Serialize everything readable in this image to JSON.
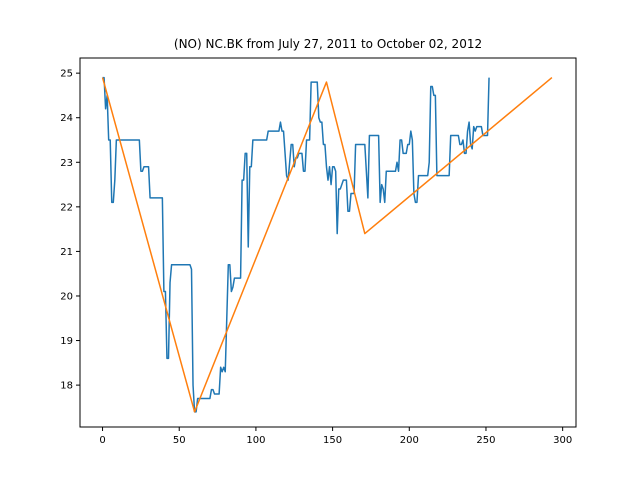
{
  "chart_data": {
    "type": "line",
    "title": "(NO) NC.BK from July 27, 2011 to October 02, 2012",
    "xlabel": "",
    "ylabel": "",
    "xlim": [
      -14.7,
      308.7
    ],
    "ylim": [
      17.06,
      25.34
    ],
    "xticks": [
      0,
      50,
      100,
      150,
      200,
      250,
      300
    ],
    "yticks": [
      18,
      19,
      20,
      21,
      22,
      23,
      24,
      25
    ],
    "grid": false,
    "legend": "none",
    "series": [
      {
        "color": "#1f77b4",
        "points": [
          [
            0,
            24.9
          ],
          [
            1,
            24.9
          ],
          [
            2,
            24.2
          ],
          [
            3,
            24.5
          ],
          [
            4,
            23.5
          ],
          [
            5,
            23.5
          ],
          [
            6,
            22.1
          ],
          [
            7,
            22.1
          ],
          [
            8,
            22.6
          ],
          [
            9,
            23.5
          ],
          [
            10,
            23.5
          ],
          [
            15,
            23.5
          ],
          [
            20,
            23.5
          ],
          [
            24,
            23.5
          ],
          [
            25,
            22.8
          ],
          [
            26,
            22.8
          ],
          [
            27,
            22.9
          ],
          [
            30,
            22.9
          ],
          [
            31,
            22.2
          ],
          [
            35,
            22.2
          ],
          [
            39,
            22.2
          ],
          [
            40,
            20.1
          ],
          [
            41,
            20.1
          ],
          [
            42,
            18.6
          ],
          [
            43,
            18.6
          ],
          [
            44,
            20.3
          ],
          [
            45,
            20.7
          ],
          [
            50,
            20.7
          ],
          [
            55,
            20.7
          ],
          [
            57,
            20.7
          ],
          [
            58,
            20.6
          ],
          [
            59,
            18.0
          ],
          [
            60,
            17.4
          ],
          [
            61,
            17.4
          ],
          [
            62,
            17.7
          ],
          [
            65,
            17.7
          ],
          [
            70,
            17.7
          ],
          [
            71,
            17.9
          ],
          [
            72,
            17.9
          ],
          [
            73,
            17.8
          ],
          [
            76,
            17.8
          ],
          [
            77,
            18.4
          ],
          [
            78,
            18.3
          ],
          [
            79,
            18.4
          ],
          [
            80,
            18.3
          ],
          [
            81,
            19.5
          ],
          [
            82,
            20.7
          ],
          [
            83,
            20.7
          ],
          [
            84,
            20.1
          ],
          [
            85,
            20.2
          ],
          [
            86,
            20.4
          ],
          [
            90,
            20.4
          ],
          [
            91,
            22.6
          ],
          [
            92,
            22.6
          ],
          [
            93,
            23.2
          ],
          [
            94,
            23.2
          ],
          [
            95,
            21.1
          ],
          [
            96,
            22.9
          ],
          [
            97,
            22.9
          ],
          [
            98,
            23.5
          ],
          [
            105,
            23.5
          ],
          [
            107,
            23.5
          ],
          [
            108,
            23.7
          ],
          [
            115,
            23.7
          ],
          [
            116,
            23.9
          ],
          [
            117,
            23.7
          ],
          [
            118,
            23.7
          ],
          [
            119,
            23.2
          ],
          [
            120,
            22.7
          ],
          [
            121,
            22.6
          ],
          [
            122,
            23.0
          ],
          [
            123,
            23.4
          ],
          [
            124,
            23.4
          ],
          [
            125,
            22.9
          ],
          [
            126,
            23.1
          ],
          [
            127,
            23.1
          ],
          [
            128,
            23.2
          ],
          [
            130,
            23.2
          ],
          [
            131,
            22.8
          ],
          [
            132,
            22.8
          ],
          [
            133,
            23.5
          ],
          [
            135,
            23.5
          ],
          [
            136,
            24.8
          ],
          [
            140,
            24.8
          ],
          [
            141,
            24.0
          ],
          [
            142,
            23.9
          ],
          [
            143,
            23.9
          ],
          [
            144,
            23.4
          ],
          [
            145,
            23.4
          ],
          [
            146,
            22.9
          ],
          [
            147,
            22.6
          ],
          [
            148,
            22.9
          ],
          [
            149,
            22.5
          ],
          [
            150,
            22.9
          ],
          [
            151,
            22.9
          ],
          [
            152,
            22.8
          ],
          [
            153,
            21.4
          ],
          [
            154,
            22.4
          ],
          [
            155,
            22.4
          ],
          [
            157,
            22.6
          ],
          [
            159,
            22.6
          ],
          [
            160,
            21.9
          ],
          [
            161,
            21.9
          ],
          [
            162,
            22.3
          ],
          [
            164,
            22.3
          ],
          [
            165,
            23.4
          ],
          [
            166,
            23.4
          ],
          [
            170,
            23.4
          ],
          [
            171,
            23.4
          ],
          [
            173,
            22.2
          ],
          [
            174,
            23.6
          ],
          [
            175,
            23.6
          ],
          [
            180,
            23.6
          ],
          [
            181,
            22.1
          ],
          [
            182,
            22.5
          ],
          [
            183,
            22.4
          ],
          [
            184,
            22.1
          ],
          [
            185,
            22.8
          ],
          [
            186,
            22.8
          ],
          [
            190,
            22.8
          ],
          [
            191,
            22.8
          ],
          [
            192,
            23.0
          ],
          [
            193,
            22.8
          ],
          [
            194,
            23.5
          ],
          [
            195,
            23.5
          ],
          [
            196,
            23.2
          ],
          [
            198,
            23.2
          ],
          [
            199,
            23.4
          ],
          [
            200,
            23.4
          ],
          [
            201,
            23.7
          ],
          [
            202,
            23.5
          ],
          [
            203,
            22.3
          ],
          [
            204,
            22.1
          ],
          [
            205,
            22.1
          ],
          [
            206,
            22.7
          ],
          [
            210,
            22.7
          ],
          [
            212,
            22.7
          ],
          [
            213,
            23.0
          ],
          [
            214,
            24.7
          ],
          [
            215,
            24.7
          ],
          [
            216,
            24.5
          ],
          [
            217,
            24.5
          ],
          [
            218,
            22.7
          ],
          [
            220,
            22.7
          ],
          [
            225,
            22.7
          ],
          [
            226,
            22.7
          ],
          [
            227,
            23.6
          ],
          [
            230,
            23.6
          ],
          [
            232,
            23.6
          ],
          [
            233,
            23.4
          ],
          [
            234,
            23.4
          ],
          [
            235,
            23.5
          ],
          [
            236,
            23.2
          ],
          [
            237,
            23.2
          ],
          [
            238,
            23.7
          ],
          [
            239,
            23.9
          ],
          [
            240,
            23.4
          ],
          [
            241,
            23.3
          ],
          [
            242,
            23.8
          ],
          [
            243,
            23.7
          ],
          [
            244,
            23.8
          ],
          [
            247,
            23.8
          ],
          [
            248,
            23.6
          ],
          [
            251,
            23.6
          ],
          [
            252,
            24.9
          ]
        ]
      },
      {
        "color": "#ff7f0e",
        "points": [
          [
            0,
            24.9
          ],
          [
            60,
            17.4
          ],
          [
            146,
            24.8
          ],
          [
            171,
            21.4
          ],
          [
            293,
            24.9
          ]
        ]
      }
    ]
  }
}
